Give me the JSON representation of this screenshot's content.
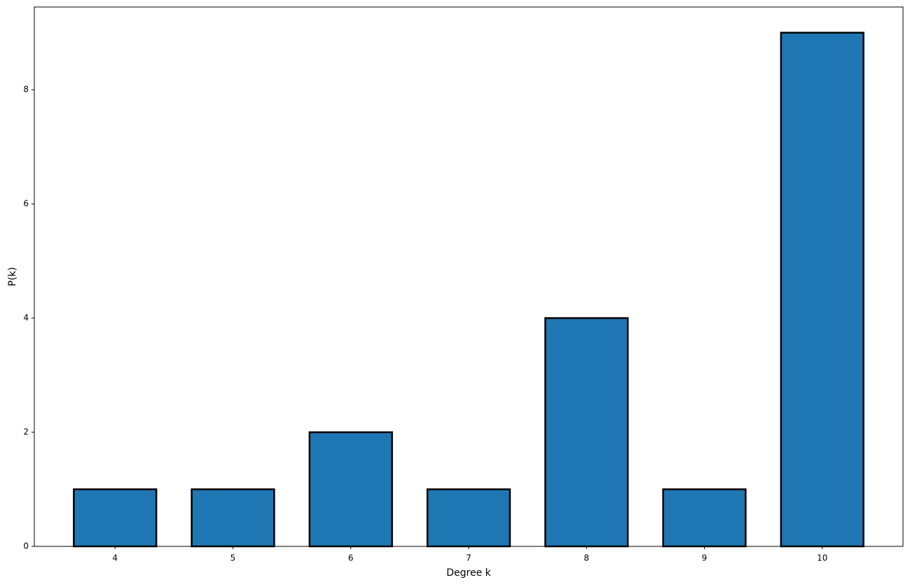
{
  "chart_data": {
    "type": "bar",
    "xlabel": "Degree k",
    "ylabel": "P(k)",
    "x": [
      4,
      5,
      6,
      7,
      8,
      9,
      10
    ],
    "values": [
      1,
      1,
      2,
      1,
      4,
      1,
      9
    ],
    "color": "#1f77b4",
    "edgecolor": "#000000",
    "xlim": [
      3.315,
      10.685
    ],
    "xticks": [
      4,
      5,
      6,
      7,
      8,
      9,
      10
    ],
    "ylim": [
      0,
      9.45
    ],
    "yticks": [
      0,
      2,
      4,
      6,
      8
    ],
    "grid": false
  }
}
